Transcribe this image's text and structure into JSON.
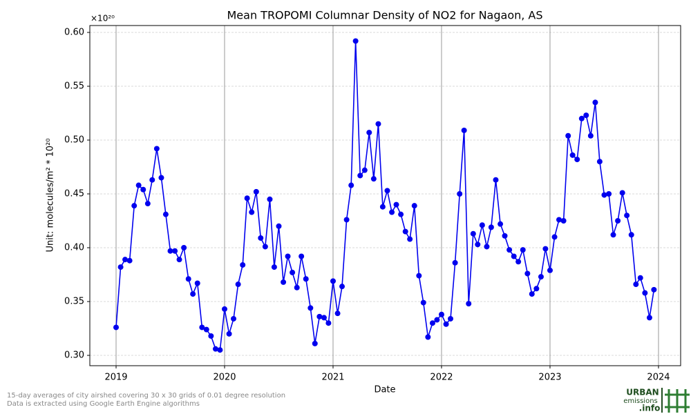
{
  "chart_data": {
    "type": "line",
    "title": "Mean TROPOMI Columnar Density of NO2 for Nagaon, AS",
    "x_label": "Date",
    "y_label": "Unit: molecules/m² * 10²⁰",
    "y_multiplier": "×10²⁰",
    "x": [
      2019,
      2019.042,
      2019.083,
      2019.125,
      2019.167,
      2019.208,
      2019.25,
      2019.292,
      2019.333,
      2019.375,
      2019.417,
      2019.458,
      2019.5,
      2019.542,
      2019.583,
      2019.625,
      2019.667,
      2019.708,
      2019.75,
      2019.792,
      2019.833,
      2019.875,
      2019.917,
      2019.958,
      2020,
      2020.042,
      2020.083,
      2020.125,
      2020.167,
      2020.208,
      2020.25,
      2020.292,
      2020.333,
      2020.375,
      2020.417,
      2020.458,
      2020.5,
      2020.542,
      2020.583,
      2020.625,
      2020.667,
      2020.708,
      2020.75,
      2020.792,
      2020.833,
      2020.875,
      2020.917,
      2020.958,
      2021,
      2021.042,
      2021.083,
      2021.125,
      2021.167,
      2021.208,
      2021.25,
      2021.292,
      2021.333,
      2021.375,
      2021.417,
      2021.458,
      2021.5,
      2021.542,
      2021.583,
      2021.625,
      2021.667,
      2021.708,
      2021.75,
      2021.792,
      2021.833,
      2021.875,
      2021.917,
      2021.958,
      2022,
      2022.042,
      2022.083,
      2022.125,
      2022.167,
      2022.208,
      2022.25,
      2022.292,
      2022.333,
      2022.375,
      2022.417,
      2022.458,
      2022.5,
      2022.542,
      2022.583,
      2022.625,
      2022.667,
      2022.708,
      2022.75,
      2022.792,
      2022.833,
      2022.875,
      2022.917,
      2022.958,
      2023,
      2023.042,
      2023.083,
      2023.125,
      2023.167,
      2023.208,
      2023.25,
      2023.292,
      2023.333,
      2023.375,
      2023.417,
      2023.458,
      2023.5,
      2023.542,
      2023.583,
      2023.625,
      2023.667,
      2023.708,
      2023.75,
      2023.792,
      2023.833,
      2023.875,
      2023.917,
      2023.958
    ],
    "series": [
      {
        "name": "NO2",
        "color": "#0000ee",
        "values": [
          0.326,
          0.382,
          0.389,
          0.388,
          0.439,
          0.458,
          0.454,
          0.441,
          0.463,
          0.492,
          0.465,
          0.431,
          0.397,
          0.397,
          0.389,
          0.4,
          0.371,
          0.357,
          0.367,
          0.326,
          0.324,
          0.318,
          0.306,
          0.305,
          0.343,
          0.32,
          0.334,
          0.366,
          0.384,
          0.446,
          0.433,
          0.452,
          0.409,
          0.401,
          0.445,
          0.382,
          0.42,
          0.368,
          0.392,
          0.377,
          0.363,
          0.392,
          0.371,
          0.344,
          0.311,
          0.336,
          0.335,
          0.33,
          0.369,
          0.339,
          0.364,
          0.426,
          0.458,
          0.592,
          0.467,
          0.472,
          0.507,
          0.464,
          0.515,
          0.438,
          0.453,
          0.433,
          0.44,
          0.431,
          0.415,
          0.408,
          0.439,
          0.374,
          0.349,
          0.317,
          0.33,
          0.333,
          0.338,
          0.329,
          0.334,
          0.386,
          0.45,
          0.509,
          0.348,
          0.413,
          0.403,
          0.421,
          0.401,
          0.419,
          0.463,
          0.422,
          0.411,
          0.398,
          0.392,
          0.387,
          0.398,
          0.376,
          0.357,
          0.362,
          0.373,
          0.399,
          0.379,
          0.41,
          0.426,
          0.425,
          0.504,
          0.486,
          0.482,
          0.52,
          0.523,
          0.504,
          0.535,
          0.48,
          0.449,
          0.45,
          0.412,
          0.425,
          0.451,
          0.43,
          0.412,
          0.366,
          0.372,
          0.358,
          0.335,
          0.361
        ]
      }
    ],
    "xlim": [
      2018.758,
      2024.204
    ],
    "xticks": [
      2019,
      2020,
      2021,
      2022,
      2023,
      2024
    ],
    "ylim": [
      0.2904,
      0.6064
    ],
    "yticks": [
      {
        "value": 0.3,
        "label": "0.30"
      },
      0.35,
      {
        "value": 0.4,
        "label": "0.40"
      },
      0.45,
      {
        "value": 0.5,
        "label": "0.50"
      },
      0.55,
      {
        "value": 0.6,
        "label": "0.60"
      }
    ],
    "grid": true
  },
  "footnotes": [
    "15-day averages of city airshed covering 30 x 30 grids of 0.01 degree resolution",
    "Data is extracted using Google Earth Engine algorithms"
  ],
  "logo": {
    "line1": "URBAN",
    "line2": "emissions",
    "line3": ".info"
  }
}
